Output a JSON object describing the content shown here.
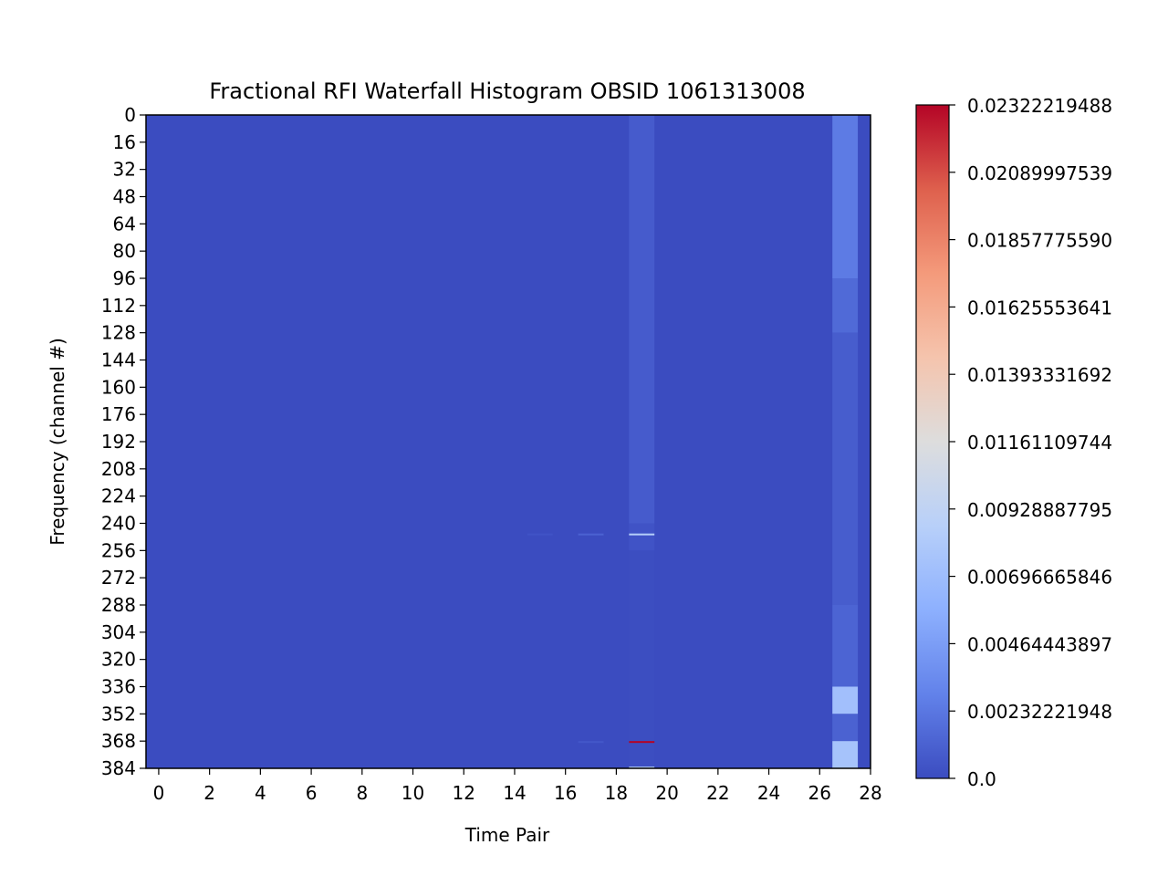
{
  "chart_data": {
    "type": "heatmap",
    "title": "Fractional RFI Waterfall Histogram OBSID 1061313008",
    "xlabel": "Time Pair",
    "ylabel": "Frequency (channel #)",
    "x_range": [
      -0.5,
      28
    ],
    "y_range": [
      0,
      384
    ],
    "x_ticks": [
      "0",
      "2",
      "4",
      "6",
      "8",
      "10",
      "12",
      "14",
      "16",
      "18",
      "20",
      "22",
      "24",
      "26",
      "28"
    ],
    "y_ticks": [
      "0",
      "16",
      "32",
      "48",
      "64",
      "80",
      "96",
      "112",
      "128",
      "144",
      "160",
      "176",
      "192",
      "208",
      "224",
      "240",
      "256",
      "272",
      "288",
      "304",
      "320",
      "336",
      "352",
      "368",
      "384"
    ],
    "colormap": "coolwarm",
    "vmin": 0.0,
    "vmax": 0.02322219488,
    "colorbar_ticks": [
      "0.0",
      "0.00232221948",
      "0.00464443897",
      "0.00696665846",
      "0.00928887795",
      "0.01161109744",
      "0.01393331692",
      "0.01625553641",
      "0.01857775590",
      "0.02089997539",
      "0.02322219488"
    ],
    "colorbar_tick_values": [
      0.0,
      0.00232221948,
      0.00464443897,
      0.00696665846,
      0.00928887795,
      0.01161109744,
      0.01393331692,
      0.01625553641,
      0.0185777559,
      0.02089997539,
      0.02322219488
    ],
    "background_value": 0.0,
    "columns": [
      {
        "time_pair": 19,
        "segments": [
          {
            "start": 0,
            "end": 240,
            "value": 0.0008
          },
          {
            "start": 240,
            "end": 256,
            "value": 0.0004
          },
          {
            "start": 256,
            "end": 384,
            "value": 0.0001
          }
        ]
      },
      {
        "time_pair": 27,
        "segments": [
          {
            "start": 0,
            "end": 96,
            "value": 0.0025
          },
          {
            "start": 96,
            "end": 128,
            "value": 0.0016
          },
          {
            "start": 128,
            "end": 288,
            "value": 0.0009
          },
          {
            "start": 288,
            "end": 336,
            "value": 0.0013
          },
          {
            "start": 336,
            "end": 352,
            "value": 0.0072
          },
          {
            "start": 352,
            "end": 368,
            "value": 0.0012
          },
          {
            "start": 368,
            "end": 384,
            "value": 0.0075
          }
        ]
      }
    ],
    "hot_spots": [
      {
        "time_pair": 19,
        "channel": 246,
        "value": 0.0085
      },
      {
        "time_pair": 19,
        "channel": 368,
        "value": 0.02322219488
      },
      {
        "time_pair": 19,
        "channel": 383,
        "value": 0.0085
      },
      {
        "time_pair": 17,
        "channel": 246,
        "value": 0.0012
      },
      {
        "time_pair": 15,
        "channel": 246,
        "value": 0.0004
      },
      {
        "time_pair": 17,
        "channel": 368,
        "value": 0.0006
      }
    ]
  }
}
